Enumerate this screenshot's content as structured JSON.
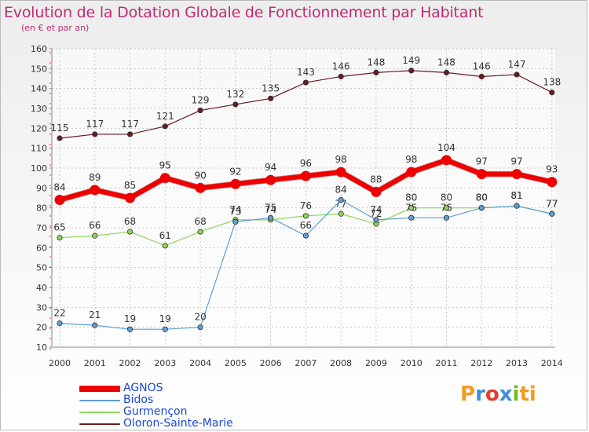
{
  "header": {
    "title": "Evolution de la Dotation Globale de Fonctionnement par Habitant",
    "subtitle": "(en € et par an)"
  },
  "logo": {
    "text": "Proxiti",
    "letters": [
      "P",
      "r",
      "o",
      "x",
      "i",
      "ti"
    ]
  },
  "chart_data": {
    "type": "line",
    "title": "Evolution de la Dotation Globale de Fonctionnement par Habitant",
    "subtitle": "(en € et par an)",
    "xlabel": "",
    "ylabel": "",
    "x": [
      "2000",
      "2001",
      "2002",
      "2003",
      "2004",
      "2005",
      "2006",
      "2007",
      "2008",
      "2009",
      "2010",
      "2011",
      "2012",
      "2013",
      "2014"
    ],
    "ylim": [
      10,
      160
    ],
    "yticks": [
      10,
      20,
      30,
      40,
      50,
      60,
      70,
      80,
      90,
      100,
      110,
      120,
      130,
      140,
      150,
      160
    ],
    "grid": true,
    "legend_position": "bottom-left",
    "series": [
      {
        "name": "Oloron-Sainte-Marie",
        "color": "#6b1a1f",
        "width": 1.2,
        "values": [
          115,
          117,
          117,
          121,
          129,
          132,
          135,
          143,
          146,
          148,
          149,
          148,
          146,
          147,
          138
        ]
      },
      {
        "name": "Gurmençon",
        "color": "#8ed65a",
        "width": 1.2,
        "values": [
          65,
          66,
          68,
          61,
          68,
          74,
          74,
          76,
          77,
          72,
          80,
          80,
          80,
          81,
          77
        ]
      },
      {
        "name": "Bidos",
        "color": "#5d9fd6",
        "width": 1.2,
        "values": [
          22,
          21,
          19,
          19,
          20,
          73,
          75,
          66,
          84,
          74,
          75,
          75,
          80,
          81,
          77
        ]
      },
      {
        "name": "AGNOS",
        "color": "#ee0000",
        "width": 6,
        "values": [
          84,
          89,
          85,
          95,
          90,
          92,
          94,
          96,
          98,
          88,
          98,
          104,
          97,
          97,
          93
        ]
      }
    ]
  }
}
